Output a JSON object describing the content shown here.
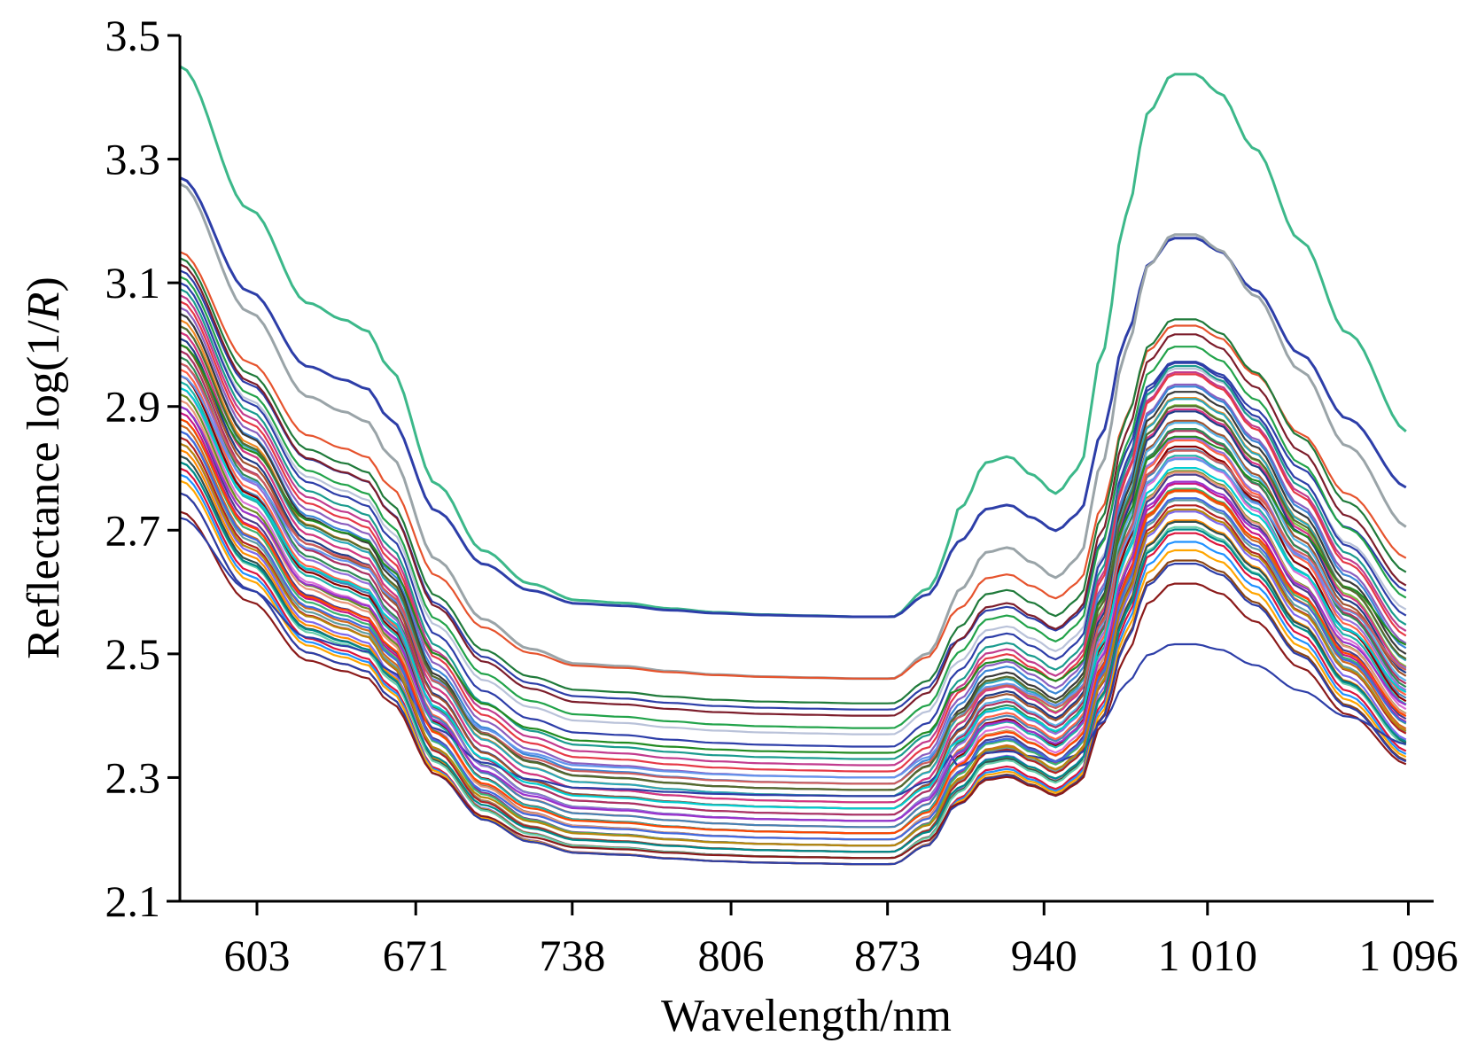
{
  "chart_data": {
    "type": "line",
    "title": "",
    "xlabel": "Wavelength/nm",
    "ylabel_parts": {
      "prefix": "Reflectance log(1/",
      "italic": "R",
      "suffix": ")"
    },
    "xlim": [
      570,
      1100
    ],
    "ylim": [
      2.1,
      3.5
    ],
    "x_ticks": [
      603,
      671,
      738,
      806,
      873,
      940,
      1010,
      1096
    ],
    "x_tick_labels": [
      "603",
      "671",
      "738",
      "806",
      "873",
      "940",
      "1 010",
      "1 096"
    ],
    "y_ticks": [
      2.1,
      2.3,
      2.5,
      2.7,
      2.9,
      3.1,
      3.3,
      3.5
    ],
    "y_tick_labels": [
      "2.1",
      "2.3",
      "2.5",
      "2.7",
      "2.9",
      "3.1",
      "3.3",
      "3.5"
    ],
    "grid": false,
    "legend": "none",
    "spectrum_shape": {
      "x": [
        570,
        600,
        625,
        640,
        650,
        660,
        680,
        700,
        720,
        740,
        760,
        780,
        800,
        820,
        840,
        860,
        875,
        890,
        905,
        915,
        925,
        935,
        945,
        955,
        965,
        975,
        985,
        995,
        1005,
        1015,
        1030,
        1050,
        1070,
        1096
      ],
      "f": [
        1.0,
        0.74,
        0.57,
        0.54,
        0.52,
        0.45,
        0.24,
        0.12,
        0.06,
        0.03,
        0.025,
        0.015,
        0.008,
        0.004,
        0.002,
        0.0,
        0.0,
        0.05,
        0.18,
        0.25,
        0.26,
        0.23,
        0.2,
        0.24,
        0.43,
        0.65,
        0.82,
        0.88,
        0.88,
        0.85,
        0.76,
        0.61,
        0.46,
        0.3
      ]
    },
    "series": [
      {
        "color": "#3cb88a",
        "y_start": 3.45,
        "y_min": 2.56,
        "amp_scale": 1.12
      },
      {
        "color": "#2d3ea8",
        "y_start": 3.27,
        "y_min": 2.56,
        "amp_scale": 0.98
      },
      {
        "color": "#9aa4a8",
        "y_start": 3.26,
        "y_min": 2.46,
        "amp_scale": 1.02
      },
      {
        "color": "#e6532d",
        "y_start": 3.15,
        "y_min": 2.46,
        "amp_scale": 0.94
      },
      {
        "color": "#1f7a3a",
        "y_start": 3.14,
        "y_min": 2.42,
        "amp_scale": 0.98
      },
      {
        "color": "#2d3ea8",
        "y_start": 3.12,
        "y_min": 2.41,
        "amp_scale": 0.9
      },
      {
        "color": "#7c1d2b",
        "y_start": 3.13,
        "y_min": 2.4,
        "amp_scale": 0.96
      },
      {
        "color": "#22a34a",
        "y_start": 3.11,
        "y_min": 2.38,
        "amp_scale": 0.96
      },
      {
        "color": "#b9c2d9",
        "y_start": 3.1,
        "y_min": 2.37,
        "amp_scale": 0.92
      },
      {
        "color": "#2d3ea8",
        "y_start": 3.1,
        "y_min": 2.35,
        "amp_scale": 0.94
      },
      {
        "color": "#1a9b8e",
        "y_start": 3.09,
        "y_min": 2.33,
        "amp_scale": 0.95
      },
      {
        "color": "#c23b8e",
        "y_start": 3.08,
        "y_min": 2.32,
        "amp_scale": 0.95
      },
      {
        "color": "#e63946",
        "y_start": 3.07,
        "y_min": 2.31,
        "amp_scale": 0.96
      },
      {
        "color": "#8b5fbf",
        "y_start": 3.06,
        "y_min": 2.3,
        "amp_scale": 0.95
      },
      {
        "color": "#3a86d6",
        "y_start": 3.05,
        "y_min": 2.29,
        "amp_scale": 0.96
      },
      {
        "color": "#3a3a3a",
        "y_start": 3.05,
        "y_min": 2.28,
        "amp_scale": 0.95
      },
      {
        "color": "#f08a24",
        "y_start": 3.04,
        "y_min": 2.27,
        "amp_scale": 0.95
      },
      {
        "color": "#2aa7b8",
        "y_start": 3.03,
        "y_min": 2.27,
        "amp_scale": 0.96
      },
      {
        "color": "#7cc242",
        "y_start": 3.02,
        "y_min": 2.26,
        "amp_scale": 0.96
      },
      {
        "color": "#d63384",
        "y_start": 3.02,
        "y_min": 2.26,
        "amp_scale": 0.95
      },
      {
        "color": "#1f3c88",
        "y_start": 3.01,
        "y_min": 2.25,
        "amp_scale": 0.96
      },
      {
        "color": "#a0522d",
        "y_start": 3.0,
        "y_min": 2.25,
        "amp_scale": 0.95
      },
      {
        "color": "#5ab4e8",
        "y_start": 2.99,
        "y_min": 2.24,
        "amp_scale": 0.96
      },
      {
        "color": "#b03060",
        "y_start": 2.99,
        "y_min": 2.24,
        "amp_scale": 0.94
      },
      {
        "color": "#2e8b57",
        "y_start": 2.98,
        "y_min": 2.23,
        "amp_scale": 0.96
      },
      {
        "color": "#9370db",
        "y_start": 2.97,
        "y_min": 2.23,
        "amp_scale": 0.95
      },
      {
        "color": "#ff6347",
        "y_start": 2.96,
        "y_min": 2.22,
        "amp_scale": 0.96
      },
      {
        "color": "#4682b4",
        "y_start": 2.95,
        "y_min": 2.22,
        "amp_scale": 0.95
      },
      {
        "color": "#8b0000",
        "y_start": 2.95,
        "y_min": 2.21,
        "amp_scale": 0.96
      },
      {
        "color": "#20b2aa",
        "y_start": 2.94,
        "y_min": 2.21,
        "amp_scale": 0.95
      },
      {
        "color": "#da70d6",
        "y_start": 2.93,
        "y_min": 2.2,
        "amp_scale": 0.96
      },
      {
        "color": "#6b8e23",
        "y_start": 2.92,
        "y_min": 2.2,
        "amp_scale": 0.94
      },
      {
        "color": "#e9967a",
        "y_start": 2.91,
        "y_min": 2.2,
        "amp_scale": 0.95
      },
      {
        "color": "#483d8b",
        "y_start": 2.9,
        "y_min": 2.19,
        "amp_scale": 0.96
      },
      {
        "color": "#c71585",
        "y_start": 2.89,
        "y_min": 2.19,
        "amp_scale": 0.95
      },
      {
        "color": "#3cb371",
        "y_start": 2.88,
        "y_min": 2.19,
        "amp_scale": 0.95
      },
      {
        "color": "#d2691e",
        "y_start": 2.87,
        "y_min": 2.18,
        "amp_scale": 0.96
      },
      {
        "color": "#5f9ea0",
        "y_start": 2.86,
        "y_min": 2.18,
        "amp_scale": 0.95
      },
      {
        "color": "#b22222",
        "y_start": 2.85,
        "y_min": 2.18,
        "amp_scale": 0.95
      },
      {
        "color": "#7b68ee",
        "y_start": 2.84,
        "y_min": 2.17,
        "amp_scale": 0.95
      },
      {
        "color": "#ff8c00",
        "y_start": 2.83,
        "y_min": 2.17,
        "amp_scale": 0.94
      },
      {
        "color": "#2f4f4f",
        "y_start": 2.82,
        "y_min": 2.17,
        "amp_scale": 0.95
      },
      {
        "color": "#66cdaa",
        "y_start": 2.81,
        "y_min": 2.17,
        "amp_scale": 0.95
      },
      {
        "color": "#dc143c",
        "y_start": 2.8,
        "y_min": 2.16,
        "amp_scale": 0.95
      },
      {
        "color": "#1e90ff",
        "y_start": 2.79,
        "y_min": 2.16,
        "amp_scale": 0.94
      },
      {
        "color": "#ffa500",
        "y_start": 2.78,
        "y_min": 2.16,
        "amp_scale": 0.93
      },
      {
        "color": "#8b4513",
        "y_start": 2.76,
        "y_min": 2.16,
        "amp_scale": 0.93
      },
      {
        "color": "#2d3ea8",
        "y_start": 2.76,
        "y_min": 2.16,
        "amp_scale": 0.92
      },
      {
        "color": "#8b1a1a",
        "y_start": 2.73,
        "y_min": 2.17,
        "amp_scale": 0.9
      },
      {
        "color": "#2d3ea8",
        "y_start": 2.72,
        "y_min": 2.27,
        "amp_scale": 0.62
      },
      {
        "color": "#6495ed",
        "y_start": 2.95,
        "y_min": 2.3,
        "amp_scale": 0.9
      },
      {
        "color": "#228b22",
        "y_start": 3.0,
        "y_min": 2.34,
        "amp_scale": 0.88
      },
      {
        "color": "#cd5c5c",
        "y_start": 2.97,
        "y_min": 2.29,
        "amp_scale": 0.9
      },
      {
        "color": "#00ced1",
        "y_start": 2.93,
        "y_min": 2.25,
        "amp_scale": 0.92
      },
      {
        "color": "#9932cc",
        "y_start": 2.9,
        "y_min": 2.23,
        "amp_scale": 0.93
      },
      {
        "color": "#556b2f",
        "y_start": 3.03,
        "y_min": 2.28,
        "amp_scale": 0.94
      },
      {
        "color": "#ff4500",
        "y_start": 2.88,
        "y_min": 2.21,
        "amp_scale": 0.94
      },
      {
        "color": "#4169e1",
        "y_start": 2.86,
        "y_min": 2.2,
        "amp_scale": 0.95
      },
      {
        "color": "#b8860b",
        "y_start": 2.84,
        "y_min": 2.19,
        "amp_scale": 0.95
      },
      {
        "color": "#008b8b",
        "y_start": 2.81,
        "y_min": 2.18,
        "amp_scale": 0.94
      }
    ]
  }
}
